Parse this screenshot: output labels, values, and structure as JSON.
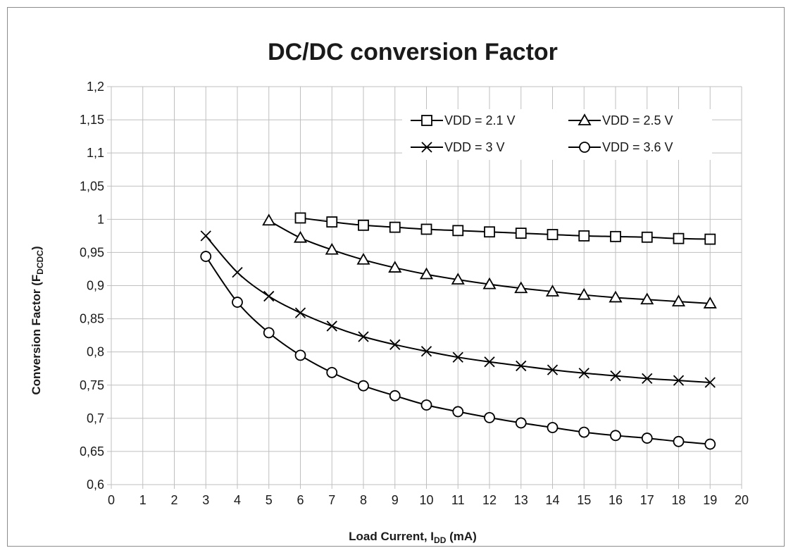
{
  "chart_data": {
    "type": "line",
    "title": "DC/DC conversion Factor",
    "xlabel": {
      "main": "Load Current, I",
      "sub": "DD",
      "tail": " (mA)"
    },
    "ylabel": {
      "main": "Conversion Factor (F",
      "sub": "DCDC",
      "tail": ")"
    },
    "xlim": [
      0,
      20
    ],
    "ylim": [
      0.6,
      1.2
    ],
    "x_ticks": [
      "0",
      "1",
      "2",
      "3",
      "4",
      "5",
      "6",
      "7",
      "8",
      "9",
      "10",
      "11",
      "12",
      "13",
      "14",
      "15",
      "16",
      "17",
      "18",
      "19",
      "20"
    ],
    "y_ticks": [
      "0,6",
      "0,65",
      "0,7",
      "0,75",
      "0,8",
      "0,85",
      "0,9",
      "0,95",
      "1",
      "1,05",
      "1,1",
      "1,15",
      "1,2"
    ],
    "grid": true,
    "legend_position": "top-right",
    "series": [
      {
        "name": "VDD = 2.1 V",
        "marker": "square",
        "x": [
          6,
          7,
          8,
          9,
          10,
          11,
          12,
          13,
          14,
          15,
          16,
          17,
          18,
          19
        ],
        "y": [
          1.002,
          0.996,
          0.991,
          0.988,
          0.985,
          0.983,
          0.981,
          0.979,
          0.977,
          0.975,
          0.974,
          0.973,
          0.971,
          0.97
        ]
      },
      {
        "name": "VDD = 2.5 V",
        "marker": "triangle",
        "x": [
          5,
          6,
          7,
          8,
          9,
          10,
          11,
          12,
          13,
          14,
          15,
          16,
          17,
          18,
          19
        ],
        "y": [
          0.998,
          0.972,
          0.954,
          0.939,
          0.927,
          0.917,
          0.909,
          0.902,
          0.896,
          0.891,
          0.886,
          0.882,
          0.879,
          0.876,
          0.873
        ]
      },
      {
        "name": "VDD = 3 V",
        "marker": "x",
        "x": [
          3,
          4,
          5,
          6,
          7,
          8,
          9,
          10,
          11,
          12,
          13,
          14,
          15,
          16,
          17,
          18,
          19
        ],
        "y": [
          0.975,
          0.92,
          0.884,
          0.859,
          0.839,
          0.823,
          0.811,
          0.801,
          0.792,
          0.785,
          0.779,
          0.773,
          0.768,
          0.764,
          0.76,
          0.757,
          0.754
        ]
      },
      {
        "name": "VDD = 3.6 V",
        "marker": "circle",
        "x": [
          3,
          4,
          5,
          6,
          7,
          8,
          9,
          10,
          11,
          12,
          13,
          14,
          15,
          16,
          17,
          18,
          19
        ],
        "y": [
          0.944,
          0.875,
          0.829,
          0.795,
          0.769,
          0.749,
          0.734,
          0.72,
          0.71,
          0.701,
          0.693,
          0.686,
          0.679,
          0.674,
          0.67,
          0.665,
          0.661
        ]
      }
    ]
  },
  "colors": {
    "line": "#000000",
    "grid": "#bfbfbf",
    "text": "#1a1a1a",
    "frame": "#8c8c8c"
  }
}
